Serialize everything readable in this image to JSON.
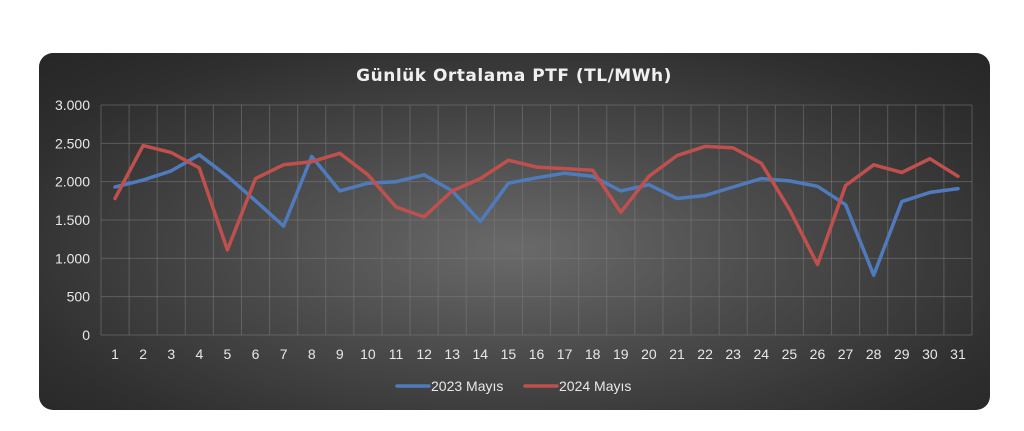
{
  "chart_data": {
    "type": "line",
    "title": "Günlük Ortalama PTF (TL/MWh)",
    "xlabel": "",
    "ylabel": "",
    "categories": [
      "1",
      "2",
      "3",
      "4",
      "5",
      "6",
      "7",
      "8",
      "9",
      "10",
      "11",
      "12",
      "13",
      "14",
      "15",
      "16",
      "17",
      "18",
      "19",
      "20",
      "21",
      "22",
      "23",
      "24",
      "25",
      "26",
      "27",
      "28",
      "29",
      "30",
      "31"
    ],
    "ylim": [
      0,
      3000
    ],
    "yticks": [
      0,
      500,
      1000,
      1500,
      2000,
      2500,
      3000
    ],
    "ytick_labels": [
      "0",
      "500",
      "1.000",
      "1.500",
      "2.000",
      "2.500",
      "3.000"
    ],
    "grid": true,
    "legend_position": "bottom",
    "series": [
      {
        "name": "2023 Mayıs",
        "color": "#4f7bbd",
        "values": [
          1930,
          2020,
          2140,
          2350,
          2070,
          1750,
          1420,
          2330,
          1880,
          1980,
          2000,
          2090,
          1880,
          1480,
          1980,
          2050,
          2110,
          2070,
          1880,
          1960,
          1780,
          1820,
          1930,
          2040,
          2010,
          1940,
          1700,
          780,
          1740,
          1860,
          1910
        ]
      },
      {
        "name": "2024 Mayıs",
        "color": "#c0504d",
        "values": [
          1780,
          2470,
          2380,
          2180,
          1110,
          2040,
          2220,
          2260,
          2370,
          2090,
          1670,
          1540,
          1880,
          2040,
          2280,
          2190,
          2170,
          2150,
          1600,
          2070,
          2340,
          2460,
          2440,
          2240,
          1640,
          920,
          1950,
          2220,
          2120,
          2300,
          2070
        ]
      }
    ]
  }
}
